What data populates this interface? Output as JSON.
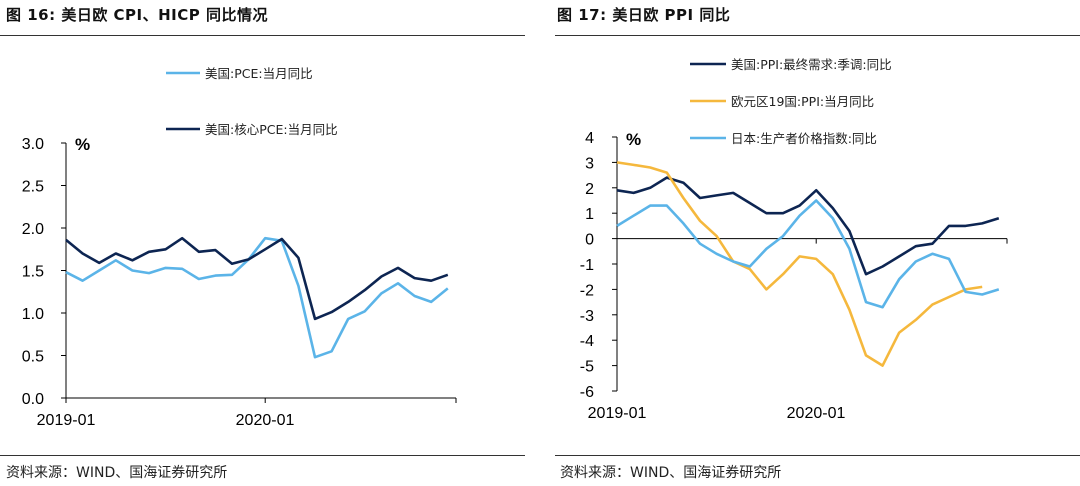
{
  "left": {
    "header": "图 16:  美日欧 CPI、HICP 同比情况",
    "source": "资料来源：WIND、国海证券研究所"
  },
  "right": {
    "header": "图 17:  美日欧 PPI 同比",
    "source": "资料来源：WIND、国海证券研究所"
  },
  "chart_data": [
    {
      "type": "line",
      "title": "图 16:  美日欧 CPI、HICP 同比情况",
      "ylabel": "%",
      "ylim": [
        0.0,
        3.0
      ],
      "yticks": [
        "0.0",
        "0.5",
        "1.0",
        "1.5",
        "2.0",
        "2.5",
        "3.0"
      ],
      "xtick_labels": [
        "2019-01",
        "2020-01"
      ],
      "x": [
        "2019-01",
        "2019-02",
        "2019-03",
        "2019-04",
        "2019-05",
        "2019-06",
        "2019-07",
        "2019-08",
        "2019-09",
        "2019-10",
        "2019-11",
        "2019-12",
        "2020-01",
        "2020-02",
        "2020-03",
        "2020-04",
        "2020-05",
        "2020-06",
        "2020-07",
        "2020-08",
        "2020-09",
        "2020-10",
        "2020-11",
        "2020-12",
        "2021-01"
      ],
      "legend_position": "top",
      "series": [
        {
          "name": "美国:PCE:当月同比",
          "color": "#5BB4E8",
          "values": [
            1.48,
            1.38,
            1.5,
            1.62,
            1.5,
            1.47,
            1.53,
            1.52,
            1.4,
            1.44,
            1.45,
            1.63,
            1.88,
            1.85,
            1.32,
            0.48,
            0.55,
            0.93,
            1.02,
            1.23,
            1.35,
            1.2,
            1.13,
            1.29,
            null
          ]
        },
        {
          "name": "美国:核心PCE:当月同比",
          "color": "#0D2552",
          "values": [
            1.86,
            1.7,
            1.59,
            1.7,
            1.62,
            1.72,
            1.75,
            1.88,
            1.72,
            1.74,
            1.58,
            1.63,
            1.75,
            1.87,
            1.65,
            0.93,
            1.01,
            1.13,
            1.27,
            1.43,
            1.53,
            1.41,
            1.38,
            1.45,
            null
          ]
        }
      ]
    },
    {
      "type": "line",
      "title": "图 17:  美日欧 PPI 同比",
      "ylabel": "%",
      "ylim": [
        -6,
        4
      ],
      "yticks": [
        "-6",
        "-5",
        "-4",
        "-3",
        "-2",
        "-1",
        "0",
        "1",
        "2",
        "3",
        "4"
      ],
      "xtick_labels": [
        "2019-01",
        "2020-01"
      ],
      "x": [
        "2019-01",
        "2019-02",
        "2019-03",
        "2019-04",
        "2019-05",
        "2019-06",
        "2019-07",
        "2019-08",
        "2019-09",
        "2019-10",
        "2019-11",
        "2019-12",
        "2020-01",
        "2020-02",
        "2020-03",
        "2020-04",
        "2020-05",
        "2020-06",
        "2020-07",
        "2020-08",
        "2020-09",
        "2020-10",
        "2020-11",
        "2020-12",
        "2021-01",
        "2021-02"
      ],
      "legend_position": "top",
      "series": [
        {
          "name": "美国:PPI:最终需求:季调:同比",
          "color": "#0D2552",
          "values": [
            1.9,
            1.8,
            2.0,
            2.4,
            2.2,
            1.6,
            1.7,
            1.8,
            1.4,
            1.0,
            1.0,
            1.3,
            1.9,
            1.2,
            0.3,
            -1.4,
            -1.1,
            -0.7,
            -0.3,
            -0.2,
            0.5,
            0.5,
            0.6,
            0.8,
            null,
            null
          ]
        },
        {
          "name": "欧元区19国:PPI:当月同比",
          "color": "#F5B83D",
          "values": [
            3.0,
            2.9,
            2.8,
            2.6,
            1.6,
            0.7,
            0.1,
            -0.9,
            -1.2,
            -2.0,
            -1.4,
            -0.7,
            -0.8,
            -1.4,
            -2.8,
            -4.6,
            -5.0,
            -3.7,
            -3.2,
            -2.6,
            -2.3,
            -2.0,
            -1.9,
            null,
            null,
            null
          ]
        },
        {
          "name": "日本:生产者价格指数:同比",
          "color": "#5BB4E8",
          "values": [
            0.5,
            0.9,
            1.3,
            1.3,
            0.6,
            -0.2,
            -0.6,
            -0.9,
            -1.1,
            -0.4,
            0.1,
            0.9,
            1.5,
            0.8,
            -0.4,
            -2.5,
            -2.7,
            -1.6,
            -0.9,
            -0.6,
            -0.8,
            -2.1,
            -2.2,
            -2.0,
            null,
            null
          ]
        }
      ]
    }
  ]
}
